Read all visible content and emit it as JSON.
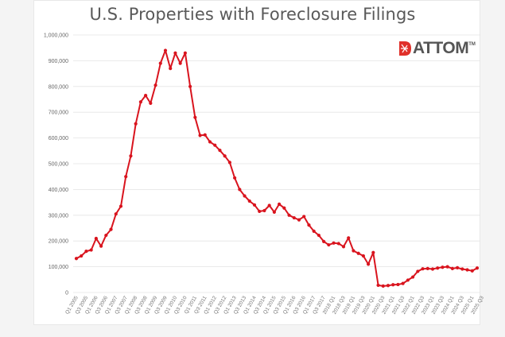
{
  "chart_data": {
    "type": "line",
    "title": "U.S. Properties with Foreclosure Filings",
    "xlabel": "",
    "ylabel": "",
    "ylim": [
      0,
      1000000
    ],
    "y_ticks": [
      "0",
      "100,000",
      "200,000",
      "300,000",
      "400,000",
      "500,000",
      "600,000",
      "700,000",
      "800,000",
      "900,000",
      "1,000,000"
    ],
    "grid": true,
    "legend": "none",
    "series_color": "#d9141e",
    "x_tick_labels": [
      "Q1 2005",
      "Q3 2005",
      "Q1 2006",
      "Q3 2006",
      "Q1 2007",
      "Q3 2007",
      "Q1 2008",
      "Q3 2008",
      "Q1 2009",
      "Q3 2009",
      "Q1 2010",
      "Q3 2010",
      "Q1 2011",
      "Q3 2011",
      "Q1 2012",
      "Q3 2012",
      "Q1 2013",
      "Q3 2013",
      "Q1 2014",
      "Q3 2014",
      "Q1 2015",
      "Q3 2015",
      "Q1 2016",
      "Q3 2016",
      "Q1 2017",
      "Q3 2017",
      "2018 Q1",
      "2018 Q3",
      "2019 Q1",
      "2019 Q3",
      "2020 Q1",
      "2020 Q3",
      "2021 Q1",
      "2021 Q3",
      "2022 Q1",
      "2022 Q3",
      "2023 Q1",
      "2023 Q3",
      "2024 Q1",
      "2024 Q3",
      "2025 Q1",
      "2025 Q3"
    ],
    "series": [
      {
        "name": "Properties with Foreclosure Filings",
        "values": [
          132000,
          142000,
          160000,
          165000,
          210000,
          180000,
          222000,
          245000,
          305000,
          335000,
          450000,
          530000,
          655000,
          740000,
          765000,
          735000,
          805000,
          890000,
          940000,
          870000,
          930000,
          890000,
          930000,
          800000,
          680000,
          610000,
          612000,
          585000,
          572000,
          552000,
          530000,
          505000,
          445000,
          400000,
          375000,
          355000,
          340000,
          315000,
          318000,
          338000,
          312000,
          343000,
          328000,
          300000,
          290000,
          282000,
          295000,
          262000,
          238000,
          222000,
          198000,
          185000,
          192000,
          190000,
          178000,
          212000,
          162000,
          152000,
          142000,
          110000,
          155000,
          28000,
          25000,
          27000,
          30000,
          31000,
          35000,
          48000,
          60000,
          82000,
          92000,
          93000,
          91000,
          95000,
          98000,
          100000,
          93000,
          96000,
          91000,
          88000,
          84000,
          95000
        ]
      }
    ]
  },
  "header": {
    "title": "U.S. Properties with Foreclosure Filings"
  },
  "logo": {
    "text": "ATTOM",
    "tm": "TM",
    "accent_color": "#e0302a"
  }
}
